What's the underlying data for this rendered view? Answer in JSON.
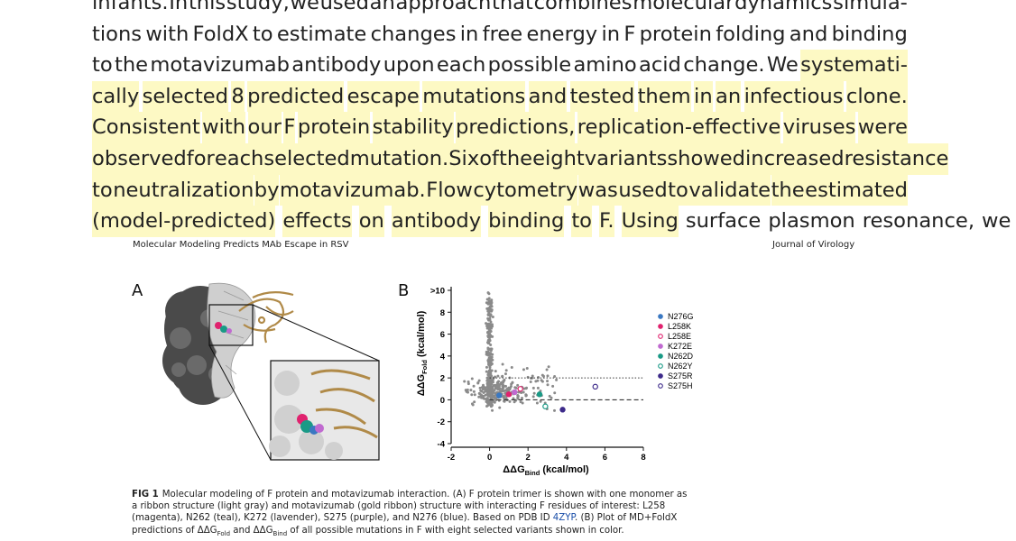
{
  "body_text": {
    "lines": [
      "infants. In this study, we used an approach that combines molecular dynamics simula-",
      "tions with FoldX to estimate changes in free energy in F protein folding and binding",
      "to the motavizumab antibody upon each possible amino acid change. We systemati-",
      "cally selected 8 predicted escape mutations and tested them in an infectious clone.",
      "Consistent with our F protein stability predictions, replication-effective viruses were",
      "observed for each selected mutation. Six of the eight variants showed increased resistance",
      "to neutralization by motavizumab. Flow cytometry was used to validate the estimated",
      "(model-predicted) effects on antibody binding to F. Using surface plasmon resonance, we"
    ],
    "highlight_start_line": 2,
    "highlight_start_word": 11,
    "highlight_end_line": 7,
    "highlight_end_word": 7,
    "highlight_color": "#fdf9c4"
  },
  "paper_header": {
    "running_title": "Molecular Modeling Predicts MAb Escape in RSV",
    "journal": "Journal of Virology"
  },
  "figure": {
    "panel_a_label": "A",
    "panel_b_label": "B",
    "caption": {
      "fig_label": "FIG 1",
      "lines": [
        "Molecular modeling of F protein and motavizumab interaction. (A) F protein trimer is shown with one monomer as",
        "a ribbon structure (light gray) and motavizumab (gold ribbon) structure with interacting F residues of interest: L258",
        "(magenta), N262 (teal), K272 (lavender), S275 (purple), and N276 (blue). Based on PDB ID ",
        "predictions of ",
        " and ",
        " of all possible mutations in F with eight selected variants shown in color."
      ],
      "pdb_id": "4ZYP",
      "line3_tail": ". (B) Plot of MD+FoldX",
      "ddg_fold": "ΔΔG",
      "fold_sub": "Fold",
      "ddg_bind": "ΔΔG",
      "bind_sub": "Bind"
    }
  },
  "chart_data": {
    "type": "scatter",
    "xlabel": "ΔΔG",
    "xlabel_sub": "Bind",
    "xlabel_unit": " (kcal/mol)",
    "ylabel": "ΔΔG",
    "ylabel_sub": "Fold",
    "ylabel_unit": " (kcal/mol)",
    "xlim": [
      -2,
      8
    ],
    "ylim": [
      -4,
      10
    ],
    "x_ticks": [
      "-2",
      "0",
      "2",
      "4",
      "6",
      "8"
    ],
    "y_ticks": [
      "-4",
      "-2",
      "0",
      "2",
      "4",
      "6",
      "8",
      ">10"
    ],
    "reference_lines": [
      {
        "y": 2,
        "style": "dotted"
      },
      {
        "y": 0,
        "style": "dashed"
      }
    ],
    "background_color": "#8a8a8a",
    "series": [
      {
        "name": "N276G",
        "x": 0.5,
        "y": 0.4,
        "marker": "filled",
        "color": "#3a78c2"
      },
      {
        "name": "L258K",
        "x": 1.0,
        "y": 0.5,
        "marker": "filled",
        "color": "#e0226e"
      },
      {
        "name": "L258E",
        "x": 1.6,
        "y": 1.0,
        "marker": "open",
        "color": "#e0226e"
      },
      {
        "name": "K272E",
        "x": 1.3,
        "y": 0.7,
        "marker": "filled",
        "color": "#c06ad0"
      },
      {
        "name": "N262D",
        "x": 2.6,
        "y": 0.5,
        "marker": "filled",
        "color": "#1a9a86"
      },
      {
        "name": "N262Y",
        "x": 2.9,
        "y": -0.6,
        "marker": "open",
        "color": "#1a9a86"
      },
      {
        "name": "S275R",
        "x": 3.8,
        "y": -0.9,
        "marker": "filled",
        "color": "#3d2a8a"
      },
      {
        "name": "S275H",
        "x": 5.5,
        "y": 1.2,
        "marker": "open",
        "color": "#3d2a8a"
      }
    ]
  }
}
